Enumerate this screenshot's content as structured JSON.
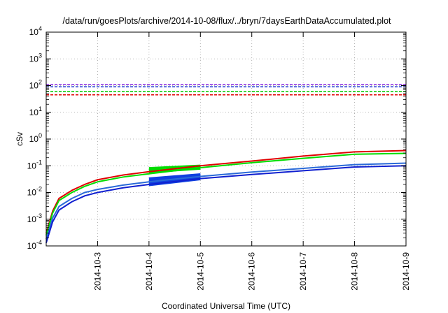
{
  "chart_data": {
    "type": "line",
    "title": "/data/run/goesPlots/archive/2014-10-08/flux/../bryn/7daysEarthDataAccumulated.plot",
    "xlabel": "Coordinated Universal Time (UTC)",
    "ylabel": "cSv",
    "y_scale": "log",
    "ylim": [
      0.0001,
      10000
    ],
    "xlim": [
      "2014-10-02T00:00",
      "2014-10-09T00:00"
    ],
    "x_tick_labels": [
      "2014-10-3",
      "2014-10-4",
      "2014-10-5",
      "2014-10-6",
      "2014-10-7",
      "2014-10-8",
      "2014-10-9"
    ],
    "y_tick_labels": [
      {
        "base": "10",
        "exp": "-4"
      },
      {
        "base": "10",
        "exp": "-3"
      },
      {
        "base": "10",
        "exp": "-2"
      },
      {
        "base": "10",
        "exp": "-1"
      },
      {
        "base": "10",
        "exp": "0"
      },
      {
        "base": "10",
        "exp": "1"
      },
      {
        "base": "10",
        "exp": "2"
      },
      {
        "base": "10",
        "exp": "3"
      },
      {
        "base": "10",
        "exp": "4"
      }
    ],
    "grid": true,
    "reference_lines": [
      {
        "y": 45,
        "color": "#e00000",
        "style": "dashed"
      },
      {
        "y": 60,
        "color": "#00cc00",
        "style": "dashed"
      },
      {
        "y": 90,
        "color": "#1030d0",
        "style": "dashed"
      },
      {
        "y": 110,
        "color": "#8a2be2",
        "style": "dashed"
      }
    ],
    "series": [
      {
        "color": "#e00000",
        "points": [
          [
            "2014-10-02T00:00",
            0.0003
          ],
          [
            "2014-10-02T03:00",
            0.002
          ],
          [
            "2014-10-02T06:00",
            0.006
          ],
          [
            "2014-10-02T12:00",
            0.012
          ],
          [
            "2014-10-02T18:00",
            0.02
          ],
          [
            "2014-10-03T00:00",
            0.03
          ],
          [
            "2014-10-03T12:00",
            0.045
          ],
          [
            "2014-10-04T00:00",
            0.06
          ],
          [
            "2014-10-05T00:00",
            0.1
          ],
          [
            "2014-10-06T00:00",
            0.15
          ],
          [
            "2014-10-07T00:00",
            0.23
          ],
          [
            "2014-10-08T00:00",
            0.33
          ],
          [
            "2014-10-09T00:00",
            0.37
          ]
        ]
      },
      {
        "color": "#00dd00",
        "points": [
          [
            "2014-10-02T00:00",
            0.00025
          ],
          [
            "2014-10-02T03:00",
            0.0017
          ],
          [
            "2014-10-02T06:00",
            0.005
          ],
          [
            "2014-10-02T12:00",
            0.01
          ],
          [
            "2014-10-02T18:00",
            0.017
          ],
          [
            "2014-10-03T00:00",
            0.025
          ],
          [
            "2014-10-03T12:00",
            0.038
          ],
          [
            "2014-10-04T00:00",
            0.05
          ],
          [
            "2014-10-05T00:00",
            0.085
          ],
          [
            "2014-10-06T00:00",
            0.13
          ],
          [
            "2014-10-07T00:00",
            0.19
          ],
          [
            "2014-10-08T00:00",
            0.27
          ],
          [
            "2014-10-09T00:00",
            0.29
          ]
        ]
      },
      {
        "color": "#2a6ad8",
        "points": [
          [
            "2014-10-02T00:00",
            0.00018
          ],
          [
            "2014-10-02T03:00",
            0.0011
          ],
          [
            "2014-10-02T06:00",
            0.003
          ],
          [
            "2014-10-02T12:00",
            0.006
          ],
          [
            "2014-10-02T18:00",
            0.01
          ],
          [
            "2014-10-03T00:00",
            0.013
          ],
          [
            "2014-10-03T12:00",
            0.019
          ],
          [
            "2014-10-04T00:00",
            0.025
          ],
          [
            "2014-10-05T00:00",
            0.04
          ],
          [
            "2014-10-06T00:00",
            0.058
          ],
          [
            "2014-10-07T00:00",
            0.08
          ],
          [
            "2014-10-08T00:00",
            0.11
          ],
          [
            "2014-10-09T00:00",
            0.125
          ]
        ]
      },
      {
        "color": "#1020d0",
        "points": [
          [
            "2014-10-02T00:00",
            0.00013
          ],
          [
            "2014-10-02T03:00",
            0.0008
          ],
          [
            "2014-10-02T06:00",
            0.0022
          ],
          [
            "2014-10-02T12:00",
            0.0045
          ],
          [
            "2014-10-02T18:00",
            0.0075
          ],
          [
            "2014-10-03T00:00",
            0.01
          ],
          [
            "2014-10-03T12:00",
            0.015
          ],
          [
            "2014-10-04T00:00",
            0.02
          ],
          [
            "2014-10-05T00:00",
            0.033
          ],
          [
            "2014-10-06T00:00",
            0.047
          ],
          [
            "2014-10-07T00:00",
            0.065
          ],
          [
            "2014-10-08T00:00",
            0.09
          ],
          [
            "2014-10-09T00:00",
            0.1
          ]
        ]
      }
    ],
    "band_overlays": [
      {
        "color": "#00dd00",
        "x_start": "2014-10-04T00:00",
        "x_end": "2014-10-05T00:00",
        "y_start": [
          0.055,
          0.085
        ],
        "y_end": [
          0.075,
          0.105
        ]
      },
      {
        "color": "#1040e0",
        "x_start": "2014-10-04T00:00",
        "x_end": "2014-10-05T00:00",
        "y_start": [
          0.018,
          0.035
        ],
        "y_end": [
          0.03,
          0.05
        ]
      }
    ]
  }
}
